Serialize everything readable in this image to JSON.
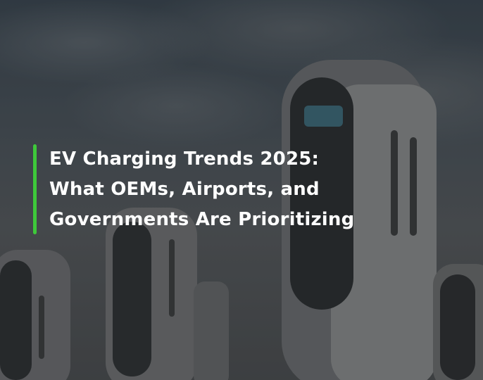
{
  "hero": {
    "title_lines": [
      "EV Charging Trends 2025:",
      "What OEMs, Airports, and",
      "Governments Are Prioritizing"
    ],
    "accent_color": "#3ec93a"
  }
}
